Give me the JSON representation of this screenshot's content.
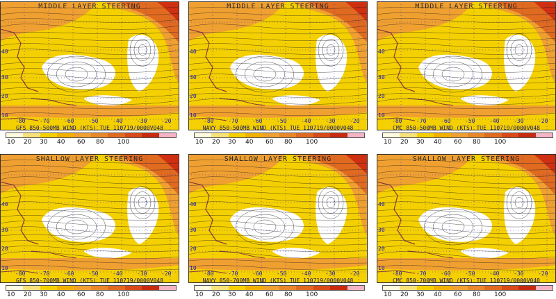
{
  "colors": {
    "ocean": "#ffffff",
    "light_yellow": "#f5d000",
    "orange": "#f0a030",
    "dark_orange": "#e06a20",
    "red": "#d03010",
    "coast": "#8b3a3a",
    "streamline": "#1a1a1a",
    "grid": "#3333cc"
  },
  "legend": {
    "ticks": [
      "10",
      "20",
      "30",
      "40",
      "60",
      "80",
      "100"
    ],
    "colors": [
      "#fffbe0",
      "#f7e27a",
      "#f5d000",
      "#f2b100",
      "#f0a030",
      "#e8882a",
      "#e06a20",
      "#d84a18",
      "#c82a10",
      "#f4b4c4"
    ]
  },
  "lon_labels": [
    "-80",
    "-70",
    "-60",
    "-50",
    "-40",
    "-30",
    "-20"
  ],
  "lat_labels": [
    "40",
    "30",
    "20",
    "10"
  ],
  "panels": [
    {
      "title": "MIDDLE LAYER STEERING",
      "caption": "GFS 850-500MB WIND (KTS) TUE 110719/0000V048"
    },
    {
      "title": "MIDDLE LAYER STEERING",
      "caption": "NAVY 850-500MB WIND (KTS) TUE 110719/0000V048"
    },
    {
      "title": "MIDDLE LAYER STEERING",
      "caption": "CMC 850-500MB WIND (KTS) TUE 110719/0000V048"
    },
    {
      "title": "SHALLOW LAYER STEERING",
      "caption": "GFS 850-700MB WIND (KTS) TUE 110719/0000V048"
    },
    {
      "title": "SHALLOW LAYER STEERING",
      "caption": "NAVY 850-700MB WIND (KTS) TUE 110719/0000V048"
    },
    {
      "title": "SHALLOW LAYER STEERING",
      "caption": "CMC 850-700MB WIND (KTS) TUE 110719/0000V048"
    }
  ]
}
